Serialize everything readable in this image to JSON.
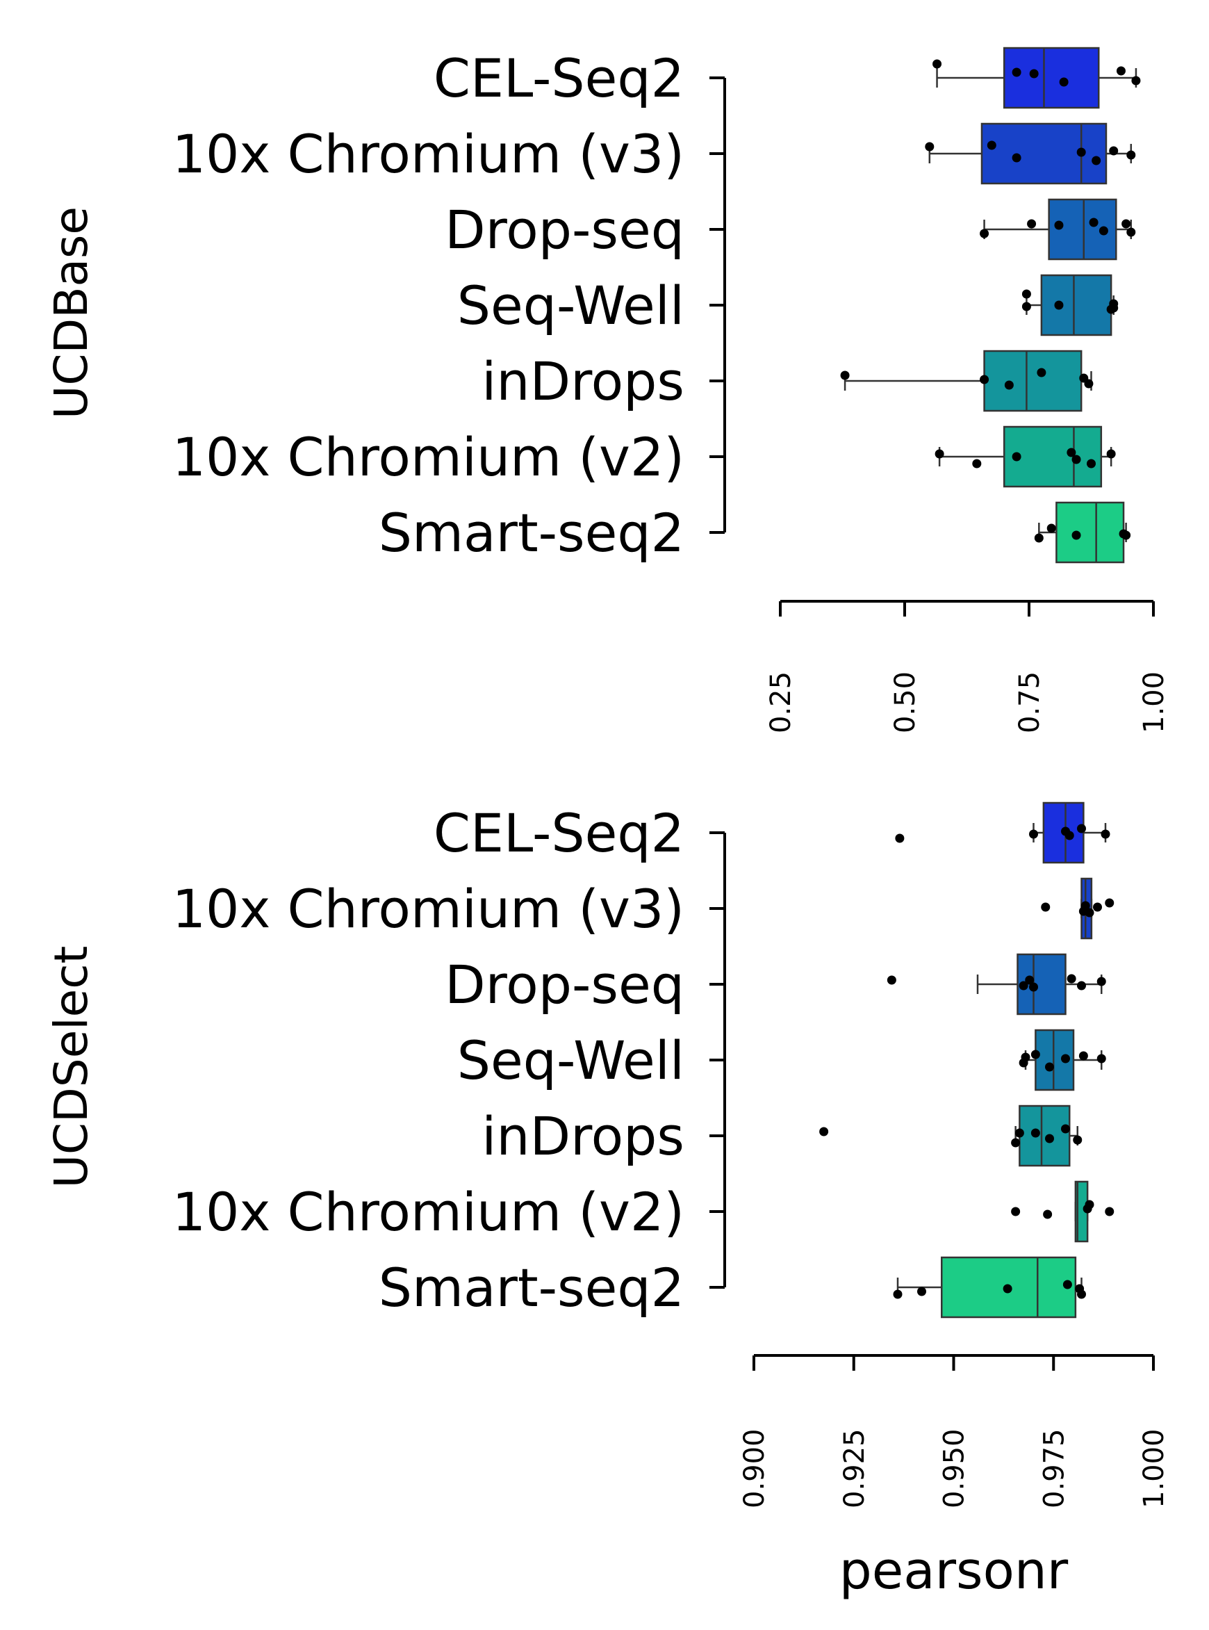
{
  "chart_data": [
    {
      "type": "box",
      "ylabel": "UCDBase",
      "xlabel": "",
      "categories": [
        "CEL-Seq2",
        "10x Chromium (v3)",
        "Drop-seq",
        "Seq-Well",
        "inDrops",
        "10x Chromium (v2)",
        "Smart-seq2"
      ],
      "colors": [
        "#1a2fde",
        "#1842c8",
        "#1562b6",
        "#1478a8",
        "#14959c",
        "#14ab90",
        "#1ccc86"
      ],
      "xlim": [
        0.25,
        1.0
      ],
      "xticks": [
        "0.25",
        "0.50",
        "0.75",
        "1.00"
      ],
      "boxes": [
        {
          "whislo": 0.565,
          "q1": 0.7,
          "med": 0.78,
          "q3": 0.89,
          "whishi": 0.965
        },
        {
          "whislo": 0.55,
          "q1": 0.655,
          "med": 0.855,
          "q3": 0.905,
          "whishi": 0.955
        },
        {
          "whislo": 0.66,
          "q1": 0.79,
          "med": 0.86,
          "q3": 0.925,
          "whishi": 0.955
        },
        {
          "whislo": 0.745,
          "q1": 0.775,
          "med": 0.84,
          "q3": 0.915,
          "whishi": 0.92
        },
        {
          "whislo": 0.38,
          "q1": 0.66,
          "med": 0.745,
          "q3": 0.855,
          "whishi": 0.875
        },
        {
          "whislo": 0.57,
          "q1": 0.7,
          "med": 0.84,
          "q3": 0.895,
          "whishi": 0.915
        },
        {
          "whislo": 0.77,
          "q1": 0.805,
          "med": 0.885,
          "q3": 0.94,
          "whishi": 0.945
        }
      ],
      "points": [
        [
          0.565,
          0.725,
          0.76,
          0.82,
          0.935,
          0.965
        ],
        [
          0.55,
          0.675,
          0.725,
          0.855,
          0.885,
          0.92,
          0.955
        ],
        [
          0.66,
          0.755,
          0.81,
          0.88,
          0.9,
          0.945,
          0.955
        ],
        [
          0.745,
          0.745,
          0.81,
          0.915,
          0.92,
          0.92
        ],
        [
          0.38,
          0.66,
          0.71,
          0.775,
          0.86,
          0.87
        ],
        [
          0.57,
          0.645,
          0.725,
          0.835,
          0.845,
          0.875,
          0.915
        ],
        [
          0.77,
          0.795,
          0.845,
          0.94,
          0.945
        ]
      ]
    },
    {
      "type": "box",
      "ylabel": "UCDSelect",
      "xlabel": "pearsonr",
      "categories": [
        "CEL-Seq2",
        "10x Chromium (v3)",
        "Drop-seq",
        "Seq-Well",
        "inDrops",
        "10x Chromium (v2)",
        "Smart-seq2"
      ],
      "colors": [
        "#1a2fde",
        "#1842c8",
        "#1562b6",
        "#1478a8",
        "#14959c",
        "#14ab90",
        "#1ccc86"
      ],
      "xlim": [
        0.9,
        1.0
      ],
      "xticks": [
        "0.900",
        "0.925",
        "0.950",
        "0.975",
        "1.000"
      ],
      "boxes": [
        {
          "whislo": 0.97,
          "q1": 0.9725,
          "med": 0.978,
          "q3": 0.9825,
          "whishi": 0.988
        },
        {
          "whislo": 0.982,
          "q1": 0.982,
          "med": 0.983,
          "q3": 0.9845,
          "whishi": 0.9845
        },
        {
          "whislo": 0.956,
          "q1": 0.966,
          "med": 0.97,
          "q3": 0.978,
          "whishi": 0.987
        },
        {
          "whislo": 0.968,
          "q1": 0.9705,
          "med": 0.975,
          "q3": 0.98,
          "whishi": 0.987
        },
        {
          "whislo": 0.9655,
          "q1": 0.9665,
          "med": 0.972,
          "q3": 0.979,
          "whishi": 0.981
        },
        {
          "whislo": 0.9805,
          "q1": 0.9805,
          "med": 0.981,
          "q3": 0.9835,
          "whishi": 0.9835
        },
        {
          "whislo": 0.936,
          "q1": 0.947,
          "med": 0.971,
          "q3": 0.9805,
          "whishi": 0.982
        }
      ],
      "points": [
        [
          0.9365,
          0.97,
          0.978,
          0.979,
          0.982,
          0.988
        ],
        [
          0.973,
          0.9825,
          0.983,
          0.984,
          0.986,
          0.989
        ],
        [
          0.9345,
          0.9675,
          0.969,
          0.97,
          0.9795,
          0.982,
          0.987
        ],
        [
          0.9675,
          0.968,
          0.9705,
          0.974,
          0.978,
          0.9825,
          0.987
        ],
        [
          0.9175,
          0.9655,
          0.9665,
          0.9705,
          0.974,
          0.978,
          0.981
        ],
        [
          0.9655,
          0.9735,
          0.9835,
          0.984,
          0.989
        ],
        [
          0.936,
          0.942,
          0.9635,
          0.9785,
          0.9815,
          0.982
        ]
      ]
    }
  ]
}
